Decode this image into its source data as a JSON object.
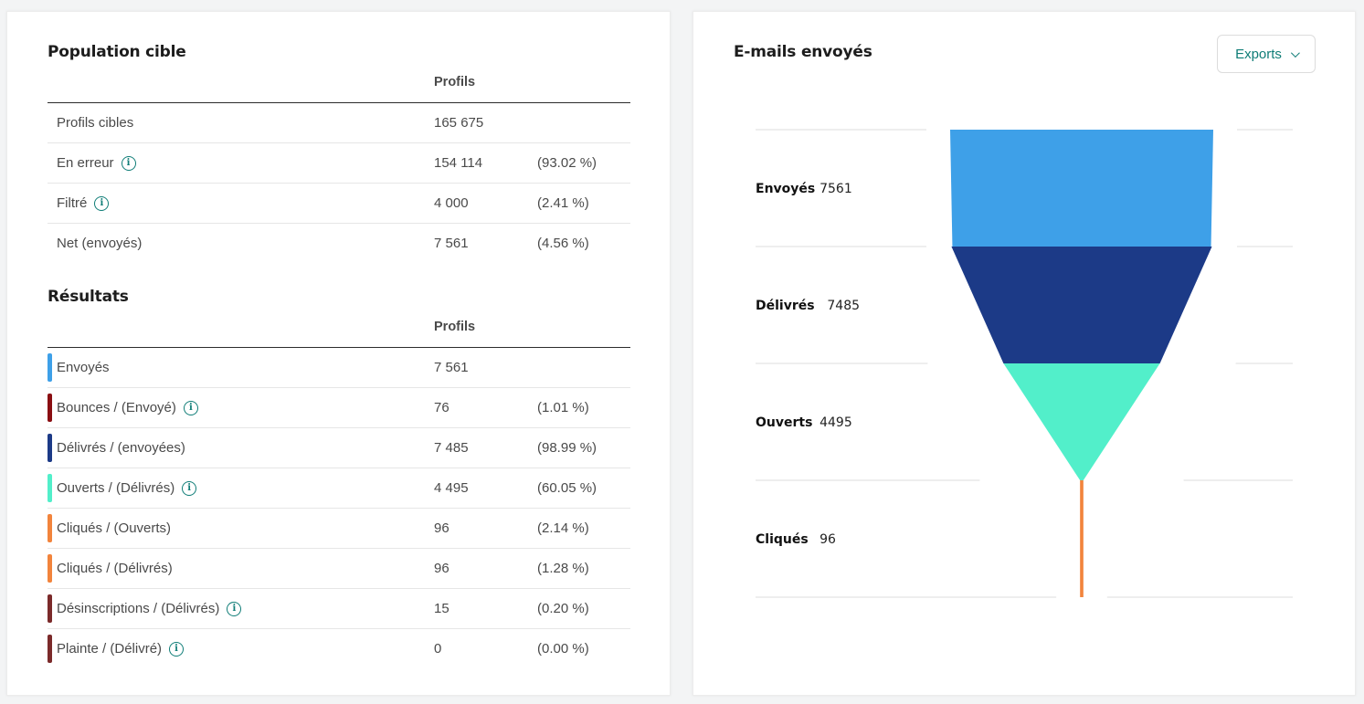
{
  "population": {
    "title": "Population cible",
    "column": "Profils",
    "rows": [
      {
        "label": "Profils cibles",
        "value": "165 675",
        "pct": "",
        "info": false
      },
      {
        "label": "En erreur",
        "value": "154 114",
        "pct": "(93.02 %)",
        "info": true
      },
      {
        "label": "Filtré",
        "value": "4 000",
        "pct": "(2.41 %)",
        "info": true
      },
      {
        "label": "Net (envoyés)",
        "value": "7 561",
        "pct": "(4.56 %)",
        "info": false
      }
    ]
  },
  "results": {
    "title": "Résultats",
    "column": "Profils",
    "rows": [
      {
        "label": "Envoyés",
        "value": "7 561",
        "pct": "",
        "info": false,
        "color": "#3ea0e8"
      },
      {
        "label": "Bounces / (Envoyé)",
        "value": "76",
        "pct": "(1.01 %)",
        "info": true,
        "color": "#8a0e12"
      },
      {
        "label": "Délivrés / (envoyées)",
        "value": "7 485",
        "pct": "(98.99 %)",
        "info": false,
        "color": "#1c3a87"
      },
      {
        "label": "Ouverts / (Délivrés)",
        "value": "4 495",
        "pct": "(60.05 %)",
        "info": true,
        "color": "#52efca"
      },
      {
        "label": "Cliqués / (Ouverts)",
        "value": "96",
        "pct": "(2.14 %)",
        "info": false,
        "color": "#f2843c"
      },
      {
        "label": "Cliqués / (Délivrés)",
        "value": "96",
        "pct": "(1.28 %)",
        "info": false,
        "color": "#f2843c"
      },
      {
        "label": "Désinscriptions / (Délivrés)",
        "value": "15",
        "pct": "(0.20 %)",
        "info": true,
        "color": "#7b2a2a"
      },
      {
        "label": "Plainte / (Délivré)",
        "value": "0",
        "pct": "(0.00 %)",
        "info": true,
        "color": "#7b2a2a"
      }
    ]
  },
  "emails": {
    "title": "E-mails envoyés",
    "exports_label": "Exports",
    "info_glyph": "i"
  },
  "chart_data": {
    "type": "funnel",
    "categories": [
      "Envoyés",
      "Délivrés",
      "Ouverts",
      "Cliqués"
    ],
    "values": [
      7561,
      7485,
      4495,
      96
    ],
    "colors": [
      "#3ea0e8",
      "#1c3a87",
      "#52efca",
      "#f2843c"
    ]
  }
}
